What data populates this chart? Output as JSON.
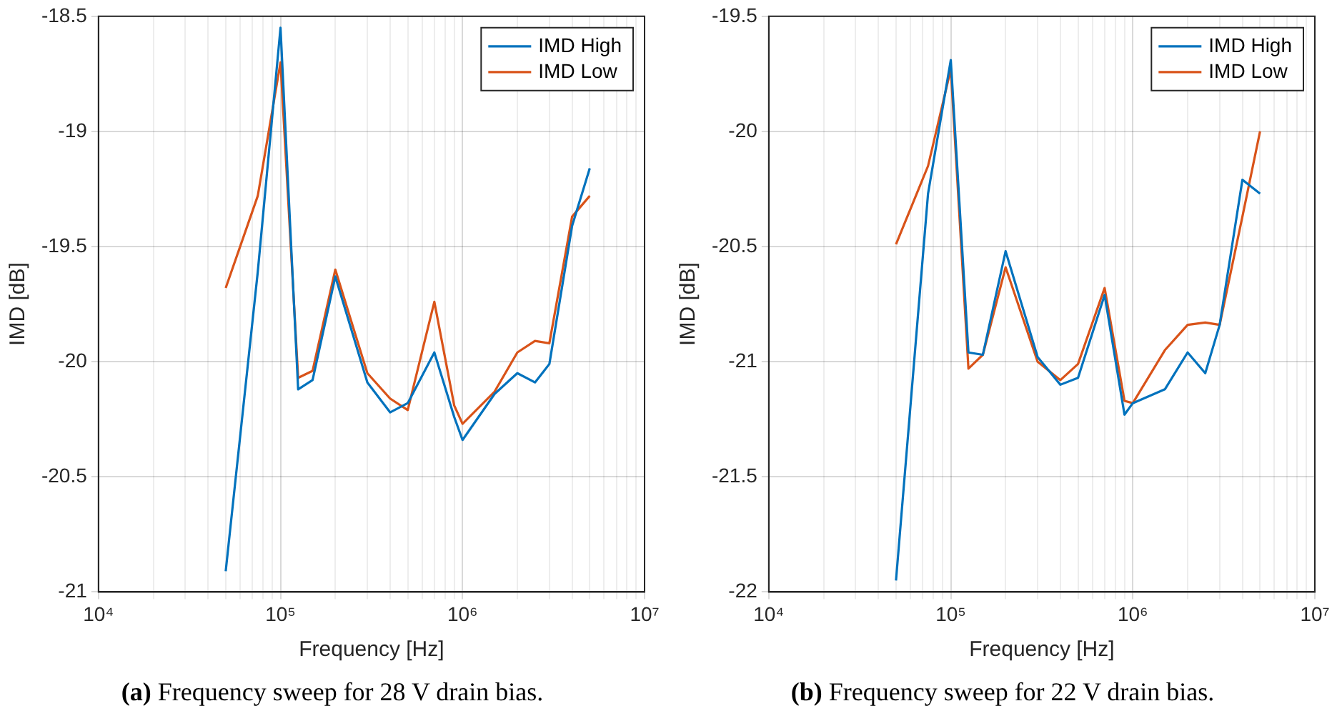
{
  "chart_data": [
    {
      "type": "line",
      "xlabel": "Frequency [Hz]",
      "ylabel": "IMD [dB]",
      "log": "x",
      "grid": true,
      "legend": "top right",
      "line_style": "solid",
      "marker": "none",
      "annotations": [
        "(a) Frequency sweep for 28 V drain bias."
      ],
      "x": [
        50000,
        75000,
        100000,
        125000,
        150000,
        200000,
        300000,
        400000,
        500000,
        700000,
        900000,
        1000000,
        1500000,
        2000000,
        2500000,
        3000000,
        4000000,
        5000000
      ],
      "xlim": [
        10000,
        10000000
      ],
      "xticks": [
        {
          "value": 10000,
          "label": "10⁴"
        },
        {
          "value": 20000,
          "label": null
        },
        {
          "value": 30000,
          "label": null
        },
        {
          "value": 40000,
          "label": null
        },
        {
          "value": 50000,
          "label": null
        },
        {
          "value": 60000,
          "label": null
        },
        {
          "value": 70000,
          "label": null
        },
        {
          "value": 80000,
          "label": null
        },
        {
          "value": 90000,
          "label": null
        },
        {
          "value": 100000,
          "label": "10⁵"
        },
        {
          "value": 200000,
          "label": null
        },
        {
          "value": 300000,
          "label": null
        },
        {
          "value": 400000,
          "label": null
        },
        {
          "value": 500000,
          "label": null
        },
        {
          "value": 600000,
          "label": null
        },
        {
          "value": 700000,
          "label": null
        },
        {
          "value": 800000,
          "label": null
        },
        {
          "value": 900000,
          "label": null
        },
        {
          "value": 1000000,
          "label": "10⁶"
        },
        {
          "value": 2000000,
          "label": null
        },
        {
          "value": 3000000,
          "label": null
        },
        {
          "value": 4000000,
          "label": null
        },
        {
          "value": 5000000,
          "label": null
        },
        {
          "value": 6000000,
          "label": null
        },
        {
          "value": 7000000,
          "label": null
        },
        {
          "value": 8000000,
          "label": null
        },
        {
          "value": 9000000,
          "label": null
        },
        {
          "value": 10000000,
          "label": "10⁷"
        }
      ],
      "ylim": [
        -21,
        -18.5
      ],
      "yticks": [
        -21,
        -20.5,
        -20,
        -19.5,
        -19,
        -18.5
      ],
      "series": [
        {
          "name": "IMD High",
          "color": "#0072bd",
          "values": [
            -20.91,
            -19.61,
            -18.55,
            -20.12,
            -20.08,
            -19.63,
            -20.09,
            -20.22,
            -20.18,
            -19.96,
            -20.24,
            -20.34,
            -20.14,
            -20.05,
            -20.09,
            -20.01,
            -19.41,
            -19.16
          ]
        },
        {
          "name": "IMD Low",
          "color": "#d95319",
          "values": [
            -19.68,
            -19.28,
            -18.7,
            -20.07,
            -20.04,
            -19.6,
            -20.05,
            -20.16,
            -20.21,
            -19.74,
            -20.19,
            -20.27,
            -20.13,
            -19.96,
            -19.91,
            -19.92,
            -19.37,
            -19.28
          ]
        }
      ]
    },
    {
      "type": "line",
      "xlabel": "Frequency [Hz]",
      "ylabel": "IMD [dB]",
      "log": "x",
      "grid": true,
      "legend": "top right",
      "line_style": "solid",
      "marker": "none",
      "annotations": [
        "(b) Frequency sweep for 22 V drain bias."
      ],
      "x": [
        50000,
        75000,
        100000,
        125000,
        150000,
        200000,
        300000,
        400000,
        500000,
        700000,
        900000,
        1000000,
        1500000,
        2000000,
        2500000,
        3000000,
        4000000,
        5000000
      ],
      "xlim": [
        10000,
        10000000
      ],
      "xticks": [
        {
          "value": 10000,
          "label": "10⁴"
        },
        {
          "value": 20000,
          "label": null
        },
        {
          "value": 30000,
          "label": null
        },
        {
          "value": 40000,
          "label": null
        },
        {
          "value": 50000,
          "label": null
        },
        {
          "value": 60000,
          "label": null
        },
        {
          "value": 70000,
          "label": null
        },
        {
          "value": 80000,
          "label": null
        },
        {
          "value": 90000,
          "label": null
        },
        {
          "value": 100000,
          "label": "10⁵"
        },
        {
          "value": 200000,
          "label": null
        },
        {
          "value": 300000,
          "label": null
        },
        {
          "value": 400000,
          "label": null
        },
        {
          "value": 500000,
          "label": null
        },
        {
          "value": 600000,
          "label": null
        },
        {
          "value": 700000,
          "label": null
        },
        {
          "value": 800000,
          "label": null
        },
        {
          "value": 900000,
          "label": null
        },
        {
          "value": 1000000,
          "label": "10⁶"
        },
        {
          "value": 2000000,
          "label": null
        },
        {
          "value": 3000000,
          "label": null
        },
        {
          "value": 4000000,
          "label": null
        },
        {
          "value": 5000000,
          "label": null
        },
        {
          "value": 6000000,
          "label": null
        },
        {
          "value": 7000000,
          "label": null
        },
        {
          "value": 8000000,
          "label": null
        },
        {
          "value": 9000000,
          "label": null
        },
        {
          "value": 10000000,
          "label": "10⁷"
        }
      ],
      "ylim": [
        -22,
        -19.5
      ],
      "yticks": [
        -22,
        -21.5,
        -21,
        -20.5,
        -20,
        -19.5
      ],
      "series": [
        {
          "name": "IMD High",
          "color": "#0072bd",
          "values": [
            -21.95,
            -20.27,
            -19.69,
            -20.96,
            -20.97,
            -20.52,
            -20.98,
            -21.1,
            -21.07,
            -20.71,
            -21.23,
            -21.18,
            -21.12,
            -20.96,
            -21.05,
            -20.84,
            -20.21,
            -20.27
          ]
        },
        {
          "name": "IMD Low",
          "color": "#d95319",
          "values": [
            -20.49,
            -20.15,
            -19.73,
            -21.03,
            -20.97,
            -20.59,
            -21,
            -21.08,
            -21.01,
            -20.68,
            -21.17,
            -21.18,
            -20.95,
            -20.84,
            -20.83,
            -20.84,
            -20.37,
            -20
          ]
        }
      ]
    }
  ]
}
